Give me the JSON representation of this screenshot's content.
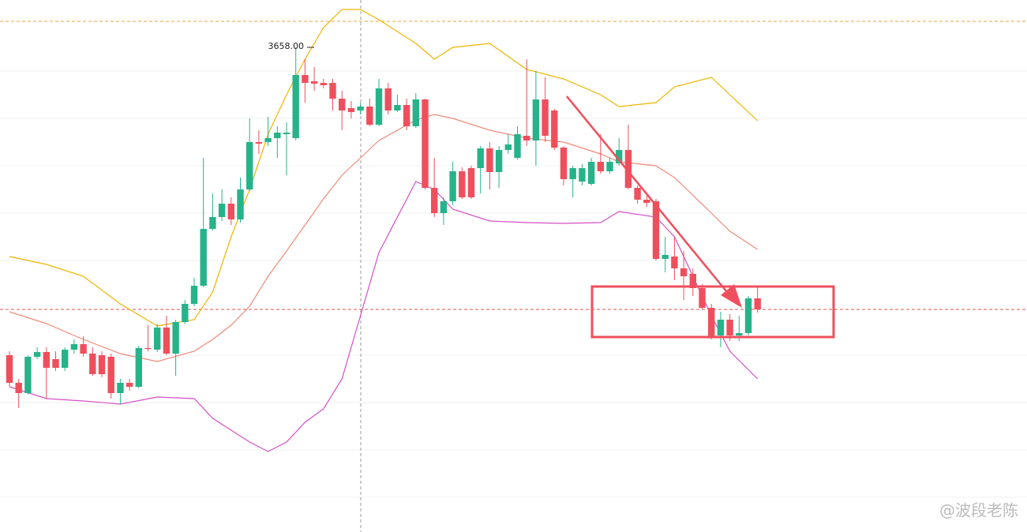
{
  "chart_data": {
    "type": "candlestick",
    "ylim": [
      3412.4,
      3682
    ],
    "up_color": "#26b38a",
    "down_color": "#ef4f5c",
    "open": [
      3502,
      3488,
      3482.8,
      3501.2,
      3503.6,
      3500,
      3495.6,
      3504.8,
      3507.6,
      3502.8,
      3502,
      3501.2,
      3482.8,
      3488,
      3486,
      3505.6,
      3504.8,
      3516,
      3502.8,
      3518.8,
      3528,
      3537.2,
      3566,
      3572,
      3578.8,
      3570.8,
      3586,
      3610,
      3610,
      3612,
      3614,
      3612,
      3644,
      3640.8,
      3640,
      3640,
      3632,
      3627.2,
      3626,
      3628,
      3618.8,
      3637.2,
      3626,
      3628.8,
      3618,
      3631.6,
      3586.8,
      3574,
      3580,
      3595.2,
      3596.8,
      3596.8,
      3606.8,
      3594.8,
      3606,
      3602,
      3613.2,
      3610.8,
      3631.6,
      3626,
      3607.2,
      3591.2,
      3590,
      3588.8,
      3600,
      3595.2,
      3599.2,
      3606,
      3586.8,
      3580.8,
      3580,
      3550.8,
      3552,
      3546,
      3543.2,
      3536,
      3526,
      3512,
      3520,
      3512,
      3513.2,
      3530.8
    ],
    "high": [
      3504,
      3490,
      3502,
      3506,
      3506,
      3504,
      3506,
      3510,
      3511.6,
      3506,
      3504,
      3502.8,
      3490,
      3490,
      3506.8,
      3517.2,
      3518,
      3522,
      3520,
      3530,
      3541.2,
      3602,
      3584,
      3586,
      3582,
      3592,
      3622,
      3616,
      3622.8,
      3618,
      3620,
      3658,
      3652,
      3648,
      3642,
      3642,
      3636,
      3630.8,
      3630,
      3632,
      3642,
      3640,
      3634,
      3632,
      3634.8,
      3632,
      3602,
      3582,
      3600,
      3597.2,
      3598,
      3608,
      3610,
      3608,
      3614,
      3618,
      3652,
      3646,
      3642.8,
      3626.8,
      3608,
      3598,
      3598.8,
      3602,
      3614,
      3602,
      3612,
      3618.8,
      3588,
      3582.8,
      3581.2,
      3562,
      3562,
      3554.8,
      3546,
      3538,
      3528,
      3524,
      3522.8,
      3522,
      3532,
      3537.2
    ],
    "low": [
      3486,
      3475.2,
      3482,
      3500,
      3480,
      3494,
      3494,
      3502.8,
      3501.2,
      3491.6,
      3490.8,
      3480,
      3477.2,
      3484,
      3485.2,
      3504,
      3503.6,
      3502,
      3491.6,
      3518,
      3526.8,
      3536.4,
      3565.2,
      3570,
      3568,
      3569.2,
      3585.2,
      3604,
      3608,
      3602,
      3593.2,
      3610.8,
      3630,
      3636,
      3637.2,
      3626,
      3616,
      3622,
      3624,
      3618,
      3618,
      3624,
      3625.2,
      3616,
      3617.2,
      3586,
      3572,
      3568,
      3578,
      3581.2,
      3581.2,
      3584,
      3586,
      3586.8,
      3604,
      3601.2,
      3608,
      3598,
      3610,
      3606,
      3588,
      3582,
      3588,
      3588,
      3594,
      3594,
      3598,
      3586,
      3578.8,
      3577.2,
      3550,
      3544,
      3540,
      3530,
      3532,
      3525.2,
      3510,
      3506,
      3509.2,
      3509.2,
      3512,
      3523.6
    ],
    "close": [
      3488,
      3482.8,
      3501.2,
      3503.6,
      3495.6,
      3495.6,
      3504.8,
      3507.6,
      3502.8,
      3492.4,
      3492.4,
      3482.8,
      3488,
      3486,
      3505.6,
      3505.2,
      3516,
      3502.8,
      3518.8,
      3528,
      3537.2,
      3566,
      3572,
      3578.8,
      3570.8,
      3586,
      3610,
      3609.2,
      3612,
      3614.8,
      3614.8,
      3644,
      3640,
      3639.6,
      3638.8,
      3632,
      3626,
      3625.2,
      3628,
      3618.8,
      3637.2,
      3626,
      3628.8,
      3618,
      3631.6,
      3586.8,
      3574,
      3580,
      3595.2,
      3582,
      3582,
      3606.8,
      3594.8,
      3606,
      3608.8,
      3614,
      3610.8,
      3631.6,
      3613.2,
      3607.2,
      3591.2,
      3596.8,
      3596.8,
      3600,
      3595.2,
      3600,
      3606,
      3586.8,
      3580.8,
      3579.2,
      3550.8,
      3552.8,
      3546,
      3542,
      3536,
      3526,
      3511.2,
      3520,
      3512,
      3513.2,
      3530.8,
      3525.2
    ],
    "bands": [
      {
        "color": "#f0b400",
        "x": [
          0,
          4,
          8,
          12,
          16,
          20,
          22,
          24,
          26,
          28,
          30,
          32,
          34,
          36,
          38,
          40,
          44,
          46,
          48,
          52,
          56,
          60,
          64,
          66,
          70,
          72,
          76,
          78,
          81
        ],
        "values": [
          3552,
          3548,
          3542,
          3528,
          3516.8,
          3520,
          3534,
          3562,
          3586,
          3614,
          3634,
          3652,
          3668,
          3677.2,
          3677.2,
          3672,
          3660,
          3652,
          3658,
          3660,
          3646.8,
          3642,
          3634,
          3628,
          3630,
          3638,
          3642.8,
          3634,
          3620.8
        ]
      },
      {
        "color": "#f28a7a",
        "x": [
          0,
          4,
          8,
          12,
          16,
          20,
          22,
          24,
          26,
          28,
          30,
          32,
          34,
          36,
          38,
          40,
          44,
          46,
          48,
          52,
          56,
          60,
          64,
          66,
          70,
          72,
          76,
          78,
          81
        ],
        "values": [
          3524,
          3518,
          3510,
          3502.8,
          3498.8,
          3504,
          3510,
          3517.2,
          3526.8,
          3542,
          3554.8,
          3568,
          3581.2,
          3593.2,
          3602,
          3610.8,
          3621.2,
          3624,
          3622,
          3616,
          3612,
          3610,
          3604,
          3600,
          3598,
          3592,
          3574,
          3564.8,
          3555.6
        ]
      },
      {
        "color": "#d64fc8",
        "x": [
          0,
          4,
          8,
          12,
          16,
          20,
          22,
          24,
          26,
          28,
          30,
          32,
          34,
          36,
          38,
          40,
          44,
          46,
          48,
          52,
          56,
          60,
          64,
          66,
          70,
          72,
          76,
          78,
          81
        ],
        "values": [
          3486,
          3480,
          3478.8,
          3477.2,
          3480.8,
          3480,
          3470,
          3464,
          3458,
          3453.2,
          3458,
          3468,
          3474.8,
          3490,
          3522,
          3554,
          3590,
          3586,
          3576,
          3570,
          3569.2,
          3568.8,
          3569.2,
          3574.8,
          3572,
          3562,
          3522,
          3504,
          3490
        ]
      }
    ],
    "reference_lines": [
      {
        "value": 3671.2,
        "color": "#f0a030"
      },
      {
        "value": 3525.2,
        "color": "#e0505a"
      }
    ],
    "max_label": {
      "value": 3658,
      "label": "3658.00"
    },
    "watermark": "@波段老陈"
  }
}
